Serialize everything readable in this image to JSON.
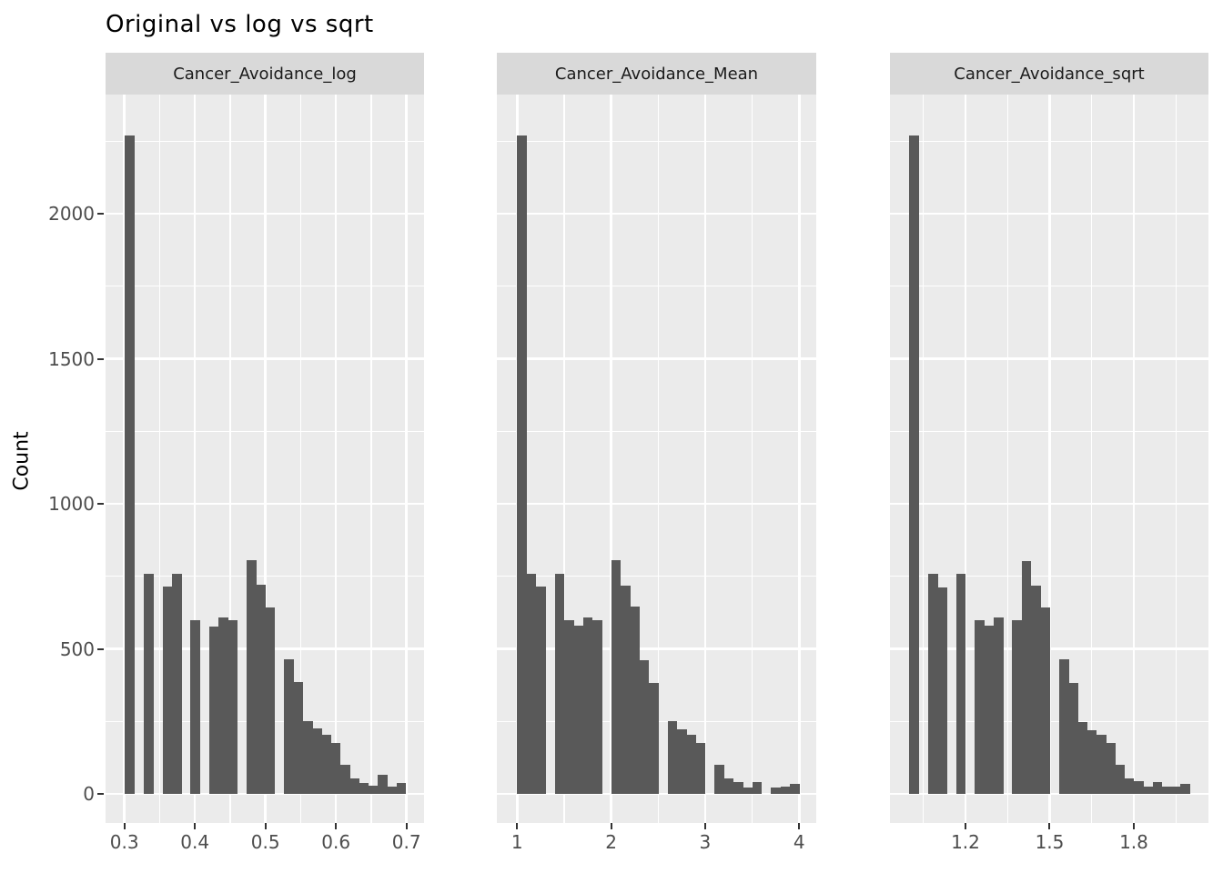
{
  "title": "Original vs log vs sqrt",
  "y_axis": {
    "label": "Count",
    "tick_labels": [
      "0",
      "500",
      "1000",
      "1500",
      "2000"
    ],
    "tick_values": [
      0,
      500,
      1000,
      1500,
      2000
    ],
    "minor_values": [
      250,
      750,
      1250,
      1750,
      2250
    ],
    "range": [
      -100.3,
      2410.7
    ],
    "grid": true
  },
  "colors": {
    "bar": "#595959",
    "panel_background": "#ebebeb",
    "strip_background": "#d9d9d9",
    "gridline": "#ffffff",
    "axis_text": "#4d4d4d",
    "tick_mark": "#333333",
    "strip_text": "#1a1a1a",
    "title_text": "#000000",
    "figure_background": "#ffffff"
  },
  "chart_data": [
    {
      "type": "bar",
      "subtype": "histogram",
      "facet_label": "Cancer_Avoidance_log",
      "bin_start": 0.30103,
      "bin_width": 0.0132647,
      "counts": [
        2270,
        0,
        760,
        0,
        715,
        760,
        0,
        600,
        0,
        577,
        608,
        598,
        0,
        806,
        720,
        644,
        0,
        465,
        385,
        250,
        225,
        205,
        176,
        101,
        53,
        39,
        28,
        65,
        25,
        38
      ],
      "x_tick_labels": [
        "0.3",
        "0.4",
        "0.5",
        "0.6",
        "0.7"
      ],
      "x_tick_values": [
        0.3,
        0.4,
        0.5,
        0.6,
        0.7
      ],
      "x_minor_values": [
        0.35,
        0.45,
        0.55,
        0.65
      ],
      "x_range": [
        0.2733,
        0.7249
      ]
    },
    {
      "type": "bar",
      "subtype": "histogram",
      "facet_label": "Cancer_Avoidance_Mean",
      "bin_start": 1.0,
      "bin_width": 0.1,
      "counts": [
        2270,
        760,
        715,
        0,
        760,
        598,
        579,
        607,
        598,
        0,
        805,
        718,
        645,
        462,
        384,
        0,
        251,
        223,
        205,
        174,
        0,
        101,
        53,
        41,
        23,
        41,
        0,
        23,
        24,
        35
      ],
      "x_tick_labels": [
        "1",
        "2",
        "3",
        "4"
      ],
      "x_tick_values": [
        1,
        2,
        3,
        4
      ],
      "x_minor_values": [
        1.5,
        2.5,
        3.5
      ],
      "x_range": [
        0.7841,
        4.1818
      ]
    },
    {
      "type": "bar",
      "subtype": "histogram",
      "facet_label": "Cancer_Avoidance_sqrt",
      "bin_start": 1.0,
      "bin_width": 0.0333333,
      "counts": [
        2270,
        0,
        758,
        713,
        0,
        760,
        0,
        598,
        579,
        607,
        0,
        598,
        803,
        718,
        643,
        0,
        463,
        384,
        249,
        220,
        205,
        174,
        100,
        54,
        43,
        25,
        41,
        25,
        24,
        35
      ],
      "x_tick_labels": [
        "1.2",
        "1.5",
        "1.8"
      ],
      "x_tick_values": [
        1.2,
        1.5,
        1.8
      ],
      "x_minor_values": [
        1.05,
        1.35,
        1.65,
        1.95
      ],
      "x_range": [
        0.9308,
        2.066
      ]
    }
  ]
}
